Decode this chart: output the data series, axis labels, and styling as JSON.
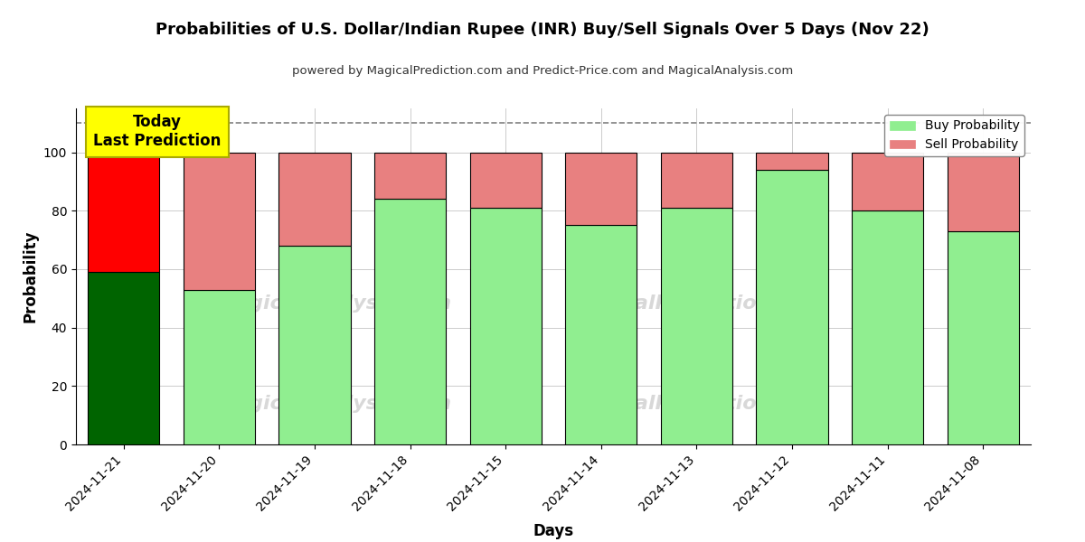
{
  "title": "Probabilities of U.S. Dollar/Indian Rupee (INR) Buy/Sell Signals Over 5 Days (Nov 22)",
  "subtitle": "powered by MagicalPrediction.com and Predict-Price.com and MagicalAnalysis.com",
  "xlabel": "Days",
  "ylabel": "Probability",
  "categories": [
    "2024-11-21",
    "2024-11-20",
    "2024-11-19",
    "2024-11-18",
    "2024-11-15",
    "2024-11-14",
    "2024-11-13",
    "2024-11-12",
    "2024-11-11",
    "2024-11-08"
  ],
  "buy_values": [
    59,
    53,
    68,
    84,
    81,
    75,
    81,
    94,
    80,
    73
  ],
  "sell_values": [
    41,
    47,
    32,
    16,
    19,
    25,
    19,
    6,
    20,
    27
  ],
  "today_buy_color": "#006400",
  "today_sell_color": "#ff0000",
  "buy_color": "#90ee90",
  "sell_color": "#e88080",
  "today_label_bg": "#ffff00",
  "today_label_text": "Today\nLast Prediction",
  "dashed_line_y": 110,
  "ylim": [
    0,
    115
  ],
  "yticks": [
    0,
    20,
    40,
    60,
    80,
    100
  ],
  "legend_buy": "Buy Probability",
  "legend_sell": "Sell Probability",
  "background_color": "#ffffff",
  "grid_color": "#cccccc"
}
